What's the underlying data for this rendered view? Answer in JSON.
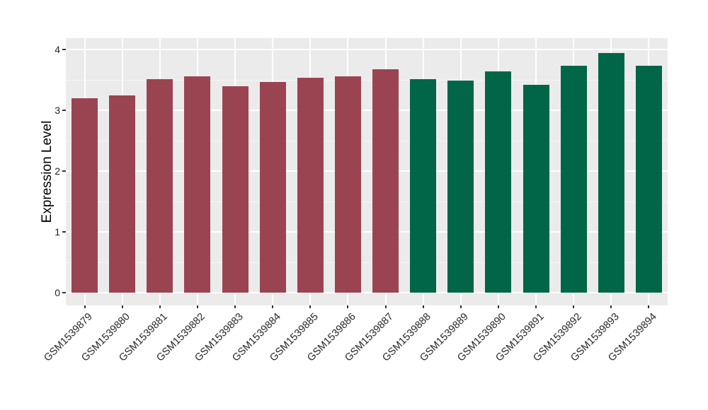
{
  "chart_data": {
    "type": "bar",
    "title": "",
    "xlabel": "",
    "ylabel": "Expression Level",
    "ylim": [
      0,
      4.19
    ],
    "yticks": [
      0,
      1,
      2,
      3,
      4
    ],
    "minor_gridlines": [
      0.5,
      1.5,
      2.5,
      3.5
    ],
    "grid": "major-and-minor-white-on-gray-panel",
    "legend_position": "none",
    "categories": [
      "GSM1539879",
      "GSM1539880",
      "GSM1539881",
      "GSM1539882",
      "GSM1539883",
      "GSM1539884",
      "GSM1539885",
      "GSM1539886",
      "GSM1539887",
      "GSM1539888",
      "GSM1539889",
      "GSM1539890",
      "GSM1539891",
      "GSM1539892",
      "GSM1539893",
      "GSM1539894"
    ],
    "values": [
      3.2,
      3.25,
      3.51,
      3.56,
      3.4,
      3.46,
      3.54,
      3.56,
      3.67,
      3.51,
      3.49,
      3.64,
      3.42,
      3.73,
      3.94,
      3.73
    ],
    "groups": [
      "group1",
      "group1",
      "group1",
      "group1",
      "group1",
      "group1",
      "group1",
      "group1",
      "group1",
      "group2",
      "group2",
      "group2",
      "group2",
      "group2",
      "group2",
      "group2"
    ],
    "group_colors": {
      "group1": "#9A4452",
      "group2": "#006647"
    },
    "panel_background": "#EBEBEB",
    "grid_color": "#FFFFFF"
  }
}
